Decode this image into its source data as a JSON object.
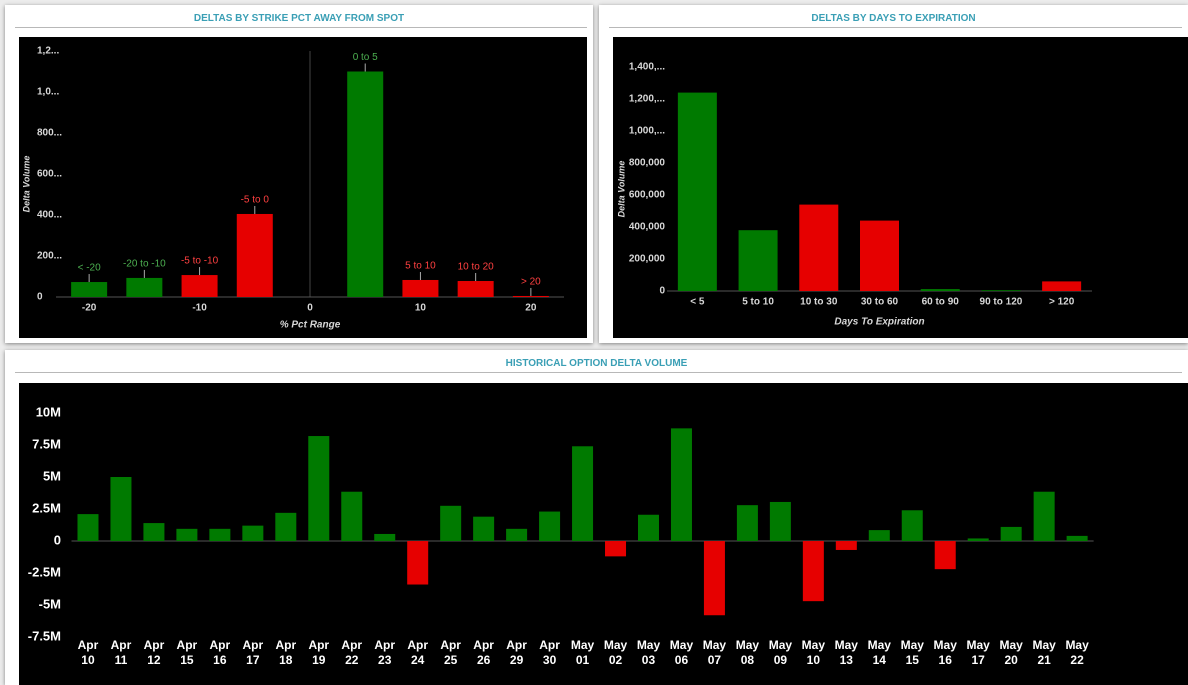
{
  "chart_data": [
    {
      "type": "bar",
      "title": "DELTAS BY STRIKE PCT AWAY FROM SPOT",
      "x_label": "% Pct Range",
      "y_label": "Delta Volume",
      "categories": [
        "< -20",
        "-20 to -10",
        "-5 to -10",
        "-5 to 0",
        "0 to 5",
        "5 to 10",
        "10 to 20",
        "> 20"
      ],
      "x": [
        -20,
        -15,
        -10,
        -5,
        5,
        10,
        15,
        20
      ],
      "values": [
        73000,
        93000,
        107000,
        405000,
        1100000,
        83000,
        78000,
        5000
      ],
      "colors": [
        "#007a00",
        "#007a00",
        "#e60000",
        "#e60000",
        "#007a00",
        "#e60000",
        "#e60000",
        "#e60000"
      ],
      "label_colors": [
        "#4caf50",
        "#4caf50",
        "#ff4040",
        "#ff4040",
        "#4caf50",
        "#ff4040",
        "#ff4040",
        "#ff4040"
      ],
      "xlim": [
        -23,
        23
      ],
      "xticks": [
        -20,
        -10,
        0,
        10,
        20
      ],
      "ylim": [
        0,
        1200000
      ],
      "yticks": [
        {
          "value": 1200000,
          "label": "1,2..."
        },
        {
          "value": 1000000,
          "label": "1,0..."
        },
        {
          "value": 800000,
          "label": "800..."
        },
        {
          "value": 600000,
          "label": "600..."
        },
        {
          "value": 400000,
          "label": "400..."
        },
        {
          "value": 200000,
          "label": "200..."
        },
        0
      ]
    },
    {
      "type": "bar",
      "title": "DELTAS BY DAYS TO EXPIRATION",
      "x_label": "Days To Expiration",
      "y_label": "Delta Volume",
      "categories": [
        "< 5",
        "5 to 10",
        "10 to 30",
        "30 to 60",
        "60 to 90",
        "90 to 120",
        "> 120"
      ],
      "values": [
        1240000,
        380000,
        540000,
        440000,
        12000,
        5000,
        60000
      ],
      "colors": [
        "#007a00",
        "#007a00",
        "#e60000",
        "#e60000",
        "#007a00",
        "#007a00",
        "#e60000"
      ],
      "ylim": [
        0,
        1400000
      ],
      "yticks": [
        {
          "value": 1400000,
          "label": "1,400,..."
        },
        {
          "value": 1200000,
          "label": "1,200,..."
        },
        {
          "value": 1000000,
          "label": "1,000,..."
        },
        {
          "value": 800000,
          "label": "800,000"
        },
        {
          "value": 600000,
          "label": "600,000"
        },
        {
          "value": 400000,
          "label": "400,000"
        },
        {
          "value": 200000,
          "label": "200,000"
        },
        0
      ]
    },
    {
      "type": "bar",
      "title": "HISTORICAL OPTION DELTA VOLUME",
      "categories": [
        "Apr 10",
        "Apr 11",
        "Apr 12",
        "Apr 15",
        "Apr 16",
        "Apr 17",
        "Apr 18",
        "Apr 19",
        "Apr 22",
        "Apr 23",
        "Apr 24",
        "Apr 25",
        "Apr 26",
        "Apr 29",
        "Apr 30",
        "May 01",
        "May 02",
        "May 03",
        "May 06",
        "May 07",
        "May 08",
        "May 09",
        "May 10",
        "May 13",
        "May 14",
        "May 15",
        "May 16",
        "May 17",
        "May 20",
        "May 21",
        "May 22"
      ],
      "values": [
        2100000,
        5000000,
        1400000,
        950000,
        950000,
        1200000,
        2200000,
        8200000,
        3850000,
        550000,
        -3400000,
        2750000,
        1900000,
        950000,
        2300000,
        7400000,
        -1200000,
        2050000,
        8800000,
        -5800000,
        2800000,
        3050000,
        -4700000,
        -700000,
        850000,
        2400000,
        -2200000,
        200000,
        1100000,
        3850000,
        400000
      ],
      "positive_color": "#007a00",
      "negative_color": "#e60000",
      "ylim": [
        -8000000,
        11000000
      ],
      "yticks": [
        {
          "value": 10000000,
          "label": "10M"
        },
        {
          "value": 7500000,
          "label": "7.5M"
        },
        {
          "value": 5000000,
          "label": "5M"
        },
        {
          "value": 2500000,
          "label": "2.5M"
        },
        0,
        {
          "value": -2500000,
          "label": "-2.5M"
        },
        {
          "value": -5000000,
          "label": "-5M"
        },
        {
          "value": -7500000,
          "label": "-7.5M"
        }
      ]
    }
  ]
}
